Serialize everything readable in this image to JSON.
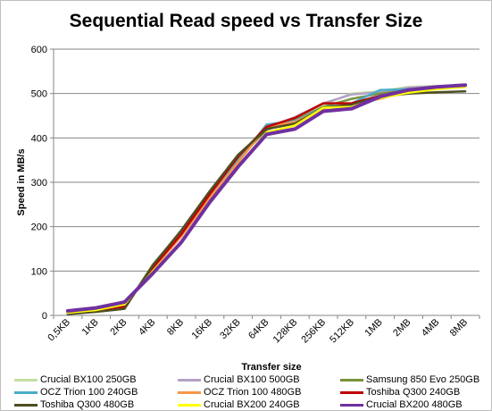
{
  "chart_data": {
    "type": "line",
    "title": "Sequential Read speed vs Transfer Size",
    "xlabel": "Transfer size",
    "ylabel": "Speed in MB/s",
    "ylim": [
      0,
      600
    ],
    "yticks": [
      0,
      100,
      200,
      300,
      400,
      500,
      600
    ],
    "grid": "horizontal",
    "legend_position": "bottom",
    "categories": [
      "0,5KB",
      "1KB",
      "2KB",
      "4KB",
      "8KB",
      "16KB",
      "32KB",
      "64KB",
      "128KB",
      "256KB",
      "512KB",
      "1MB",
      "2MB",
      "4MB",
      "8MB"
    ],
    "series": [
      {
        "name": "Crucial BX100 250GB",
        "color": "#c4dfa3",
        "values": [
          5,
          10,
          18,
          110,
          185,
          275,
          355,
          420,
          445,
          475,
          500,
          505,
          515,
          517,
          518
        ]
      },
      {
        "name": "Crucial BX100 500GB",
        "color": "#b3a2c7",
        "values": [
          6,
          11,
          20,
          112,
          188,
          278,
          357,
          422,
          447,
          478,
          498,
          503,
          513,
          516,
          517
        ]
      },
      {
        "name": "Samsung 850 Evo 250GB",
        "color": "#77933c",
        "values": [
          4,
          9,
          17,
          115,
          190,
          272,
          352,
          418,
          440,
          470,
          488,
          500,
          508,
          514,
          516
        ]
      },
      {
        "name": "OCZ Trion 100 240GB",
        "color": "#4bacc6",
        "values": [
          7,
          12,
          22,
          105,
          180,
          268,
          348,
          430,
          438,
          468,
          478,
          508,
          510,
          515,
          518
        ]
      },
      {
        "name": "OCZ Trion 100 480GB",
        "color": "#f79646",
        "values": [
          6,
          11,
          21,
          104,
          178,
          265,
          345,
          425,
          436,
          466,
          478,
          488,
          505,
          512,
          515
        ]
      },
      {
        "name": "Toshiba Q300 240GB",
        "color": "#c00000",
        "values": [
          5,
          10,
          20,
          108,
          183,
          273,
          358,
          425,
          445,
          478,
          478,
          495,
          508,
          515,
          517
        ]
      },
      {
        "name": "Toshiba Q300 480GB",
        "color": "#4f4d23",
        "values": [
          3,
          8,
          15,
          113,
          192,
          280,
          362,
          420,
          432,
          468,
          475,
          493,
          500,
          503,
          505
        ]
      },
      {
        "name": "Crucial BX200 240GB",
        "color": "#ffff00",
        "values": [
          6,
          12,
          25,
          100,
          165,
          255,
          335,
          412,
          428,
          468,
          470,
          490,
          502,
          510,
          515
        ]
      },
      {
        "name": "Crucial BX200 480GB",
        "color": "#7030a0",
        "values": [
          10,
          17,
          30,
          95,
          165,
          255,
          335,
          408,
          420,
          460,
          466,
          493,
          508,
          515,
          519
        ]
      }
    ]
  }
}
